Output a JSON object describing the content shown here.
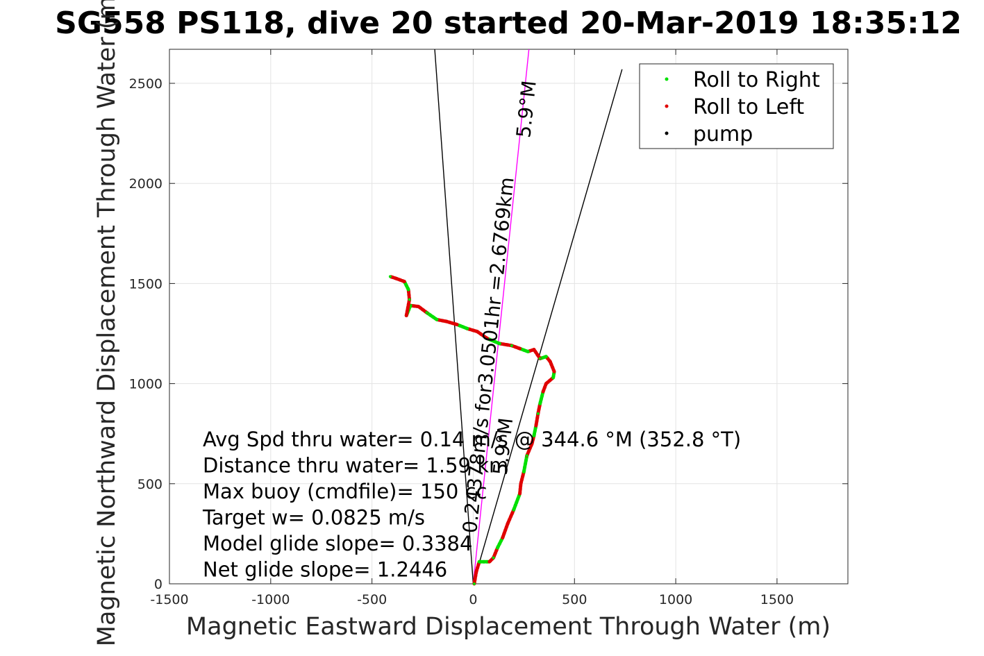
{
  "chart_data": {
    "type": "line",
    "title": "SG558 PS118, dive 20 started 20-Mar-2019 18:35:12",
    "xlabel": "Magnetic Eastward Displacement Through Water (m)",
    "ylabel": "Magnetic Northward Displacement Through Water (m)",
    "xlim": [
      -1500,
      1850
    ],
    "ylim": [
      0,
      2670
    ],
    "xticks": [
      -1500,
      -1000,
      -500,
      0,
      500,
      1000,
      1500
    ],
    "yticks": [
      0,
      500,
      1000,
      1500,
      2000,
      2500
    ],
    "grid": true,
    "legend": {
      "placement": "top-right",
      "entries": [
        {
          "label": "Roll to Right",
          "color": "#00e000"
        },
        {
          "label": "Roll to Left",
          "color": "#e00000"
        },
        {
          "label": "pump",
          "color": "#000000"
        }
      ]
    },
    "track": [
      [
        5,
        0
      ],
      [
        15,
        60
      ],
      [
        30,
        110
      ],
      [
        80,
        110
      ],
      [
        100,
        130
      ],
      [
        120,
        180
      ],
      [
        145,
        230
      ],
      [
        170,
        300
      ],
      [
        200,
        370
      ],
      [
        230,
        450
      ],
      [
        235,
        500
      ],
      [
        250,
        560
      ],
      [
        265,
        640
      ],
      [
        290,
        700
      ],
      [
        300,
        740
      ],
      [
        310,
        790
      ],
      [
        320,
        850
      ],
      [
        330,
        900
      ],
      [
        345,
        960
      ],
      [
        360,
        1000
      ],
      [
        395,
        1030
      ],
      [
        400,
        1060
      ],
      [
        380,
        1110
      ],
      [
        360,
        1135
      ],
      [
        330,
        1125
      ],
      [
        300,
        1170
      ],
      [
        270,
        1160
      ],
      [
        230,
        1175
      ],
      [
        190,
        1190
      ],
      [
        130,
        1200
      ],
      [
        70,
        1225
      ],
      [
        20,
        1260
      ],
      [
        -30,
        1275
      ],
      [
        -80,
        1295
      ],
      [
        -130,
        1310
      ],
      [
        -180,
        1320
      ],
      [
        -230,
        1355
      ],
      [
        -270,
        1385
      ],
      [
        -310,
        1390
      ],
      [
        -330,
        1340
      ],
      [
        -315,
        1420
      ],
      [
        -320,
        1470
      ],
      [
        -340,
        1510
      ],
      [
        -380,
        1525
      ],
      [
        -410,
        1535
      ]
    ],
    "reference_lines": [
      {
        "from": [
          0,
          0
        ],
        "to": [
          -190,
          2670
        ],
        "color": "#000000"
      },
      {
        "from": [
          0,
          0
        ],
        "to": [
          275,
          2670
        ],
        "color": "#ff00ff"
      },
      {
        "from": [
          0,
          0
        ],
        "to": [
          735,
          2570
        ],
        "color": "#000000"
      }
    ],
    "rotated_labels": [
      {
        "text": "0.24378m/s for3.0501hr =2.6769km",
        "x": 15,
        "y": 250
      },
      {
        "text": "5.9°M",
        "x": 280,
        "y": 2225
      },
      {
        "text": "5.9°M",
        "x": 165,
        "y": 540
      }
    ],
    "annotations": [
      "Avg Spd thru water=  0.14 m/s @ 344.6 °M (352.8 °T)",
      "Distance thru water=  1.59 km",
      "Max buoy (cmdfile)= 150 cc",
      "Target w= 0.0825 m/s",
      "Model glide slope= 0.3384",
      "Net glide slope= 1.2446"
    ]
  }
}
